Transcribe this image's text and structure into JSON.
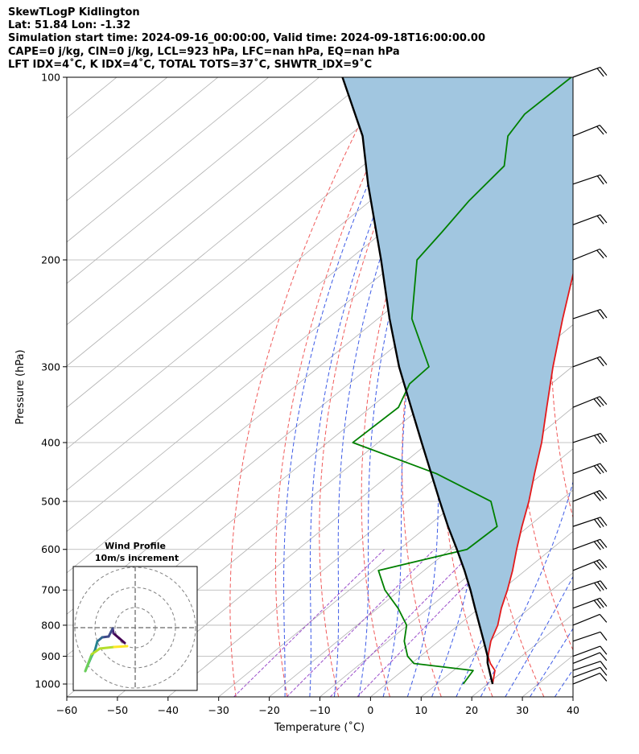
{
  "header": {
    "line1": "SkewTLogP Kidlington",
    "line2": "Lat: 51.84   Lon: -1.32",
    "line3": "Simulation start time: 2024-09-16_00:00:00, Valid time: 2024-09-18T16:00:00.00",
    "line4": "CAPE=0 j/kg, CIN=0 j/kg, LCL=923 hPa, LFC=nan hPa, EQ=nan hPa",
    "line5": "LFT IDX=4˚C, K IDX=4˚C, TOTAL TOTS=37˚C, SHWTR_IDX=9˚C"
  },
  "chart_data": {
    "type": "line",
    "title": "SkewTLogP Kidlington",
    "xlabel": "Temperature (˚C)",
    "ylabel": "Pressure (hPa)",
    "xlim": [
      -60,
      40
    ],
    "ylim": [
      1050,
      100
    ],
    "y_scale": "log",
    "x_ticks": [
      -60,
      -50,
      -40,
      -30,
      -20,
      -10,
      0,
      10,
      20,
      30,
      40
    ],
    "y_ticks": [
      100,
      200,
      300,
      400,
      500,
      600,
      700,
      800,
      900,
      1000
    ],
    "grid": true,
    "series": [
      {
        "color": "#e31a1c",
        "pressure": [
          1000,
          950,
          925,
          900,
          850,
          800,
          750,
          700,
          650,
          600,
          550,
          500,
          450,
          400,
          350,
          300,
          250,
          200,
          180,
          160,
          140,
          125,
          115,
          108,
          100
        ],
        "values": [
          21,
          18.2,
          15.6,
          13.4,
          10.3,
          7.8,
          4.4,
          1.2,
          -2.5,
          -6.8,
          -11.3,
          -16,
          -21.6,
          -27.7,
          -35.2,
          -43.8,
          -53.5,
          -65,
          -71,
          -74.5,
          -76,
          -77.3,
          -79,
          -81.3,
          -82.7
        ]
      },
      {
        "color": "#008000",
        "pressure": [
          1000,
          950,
          925,
          900,
          850,
          800,
          750,
          700,
          650,
          600,
          550,
          500,
          450,
          400,
          350,
          320,
          300,
          250,
          200,
          180,
          160,
          140,
          125,
          115,
          100
        ],
        "values": [
          15.2,
          13.9,
          0.5,
          -2.5,
          -6.8,
          -10.2,
          -16,
          -23,
          -29,
          -16.6,
          -16.2,
          -23.5,
          -41,
          -65,
          -64.5,
          -68,
          -68.3,
          -83.3,
          -96.5,
          -98.3,
          -100.5,
          -102,
          -108.5,
          -110.5,
          -110.2
        ]
      },
      {
        "color": "#000000",
        "pressure": [
          1000,
          923,
          900,
          850,
          800,
          750,
          700,
          650,
          600,
          550,
          500,
          450,
          400,
          350,
          300,
          250,
          200,
          150,
          125,
          100
        ],
        "values": [
          21,
          14.9,
          13.3,
          8.9,
          4.2,
          -0.8,
          -6.1,
          -12,
          -18.6,
          -25.9,
          -33.6,
          -42,
          -51.4,
          -62,
          -74.2,
          -87.7,
          -103.6,
          -124.5,
          -137.2,
          -155.4
        ]
      }
    ],
    "wind_barbs": {
      "pressure": [
        1000,
        975,
        950,
        925,
        900,
        850,
        800,
        750,
        700,
        650,
        600,
        550,
        500,
        450,
        400,
        350,
        300,
        250,
        200,
        175,
        150,
        125,
        100
      ],
      "count": 23
    },
    "inset": {
      "title": "Wind Profile",
      "subtitle": "10m/s increment"
    }
  },
  "colors": {
    "temperature": "#e31a1c",
    "dewpoint": "#008000",
    "parcel": "#000000",
    "cape_fill": "#a1c6e0",
    "dry_adiabat": "#f05a5a",
    "moist_adiabat": "#3c5ae6",
    "mixing_ratio": "#9b4dca"
  }
}
